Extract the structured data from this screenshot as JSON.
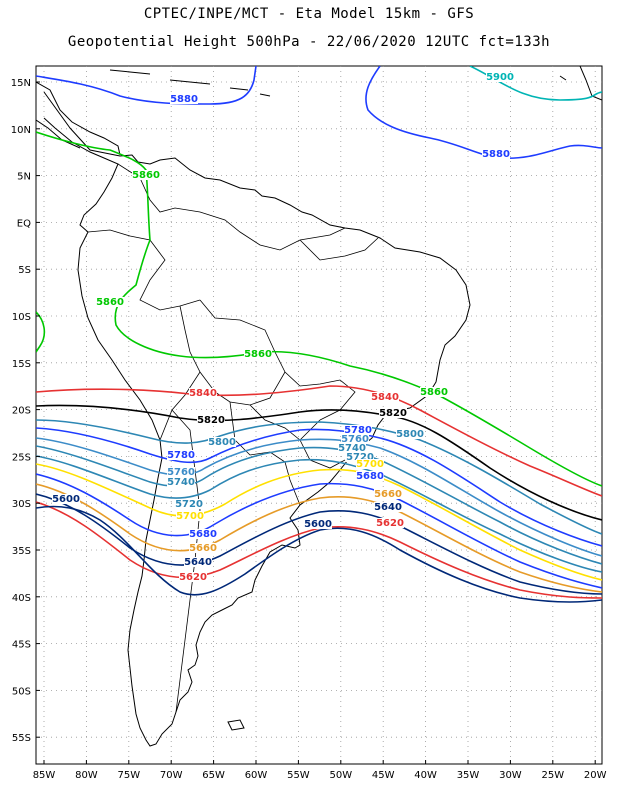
{
  "title_line1": "CPTEC/INPE/MCT -  Eta Model 15km - GFS",
  "title_line2": "Geopotential Height 500hPa - 22/06/2020 12UTC fct=133h",
  "lat_labels": [
    "15N",
    "10N",
    "5N",
    "EQ",
    "5S",
    "10S",
    "15S",
    "20S",
    "25S",
    "30S",
    "35S",
    "40S",
    "45S",
    "50S",
    "55S"
  ],
  "lon_labels": [
    "85W",
    "80W",
    "75W",
    "70W",
    "65W",
    "60W",
    "55W",
    "50W",
    "45W",
    "40W",
    "35W",
    "30W",
    "25W",
    "20W"
  ],
  "contours": [
    {
      "value": "5900",
      "color": "#00b4b4",
      "labels": 1
    },
    {
      "value": "5880",
      "color": "#1e3cff",
      "labels": 2
    },
    {
      "value": "5860",
      "color": "#00c800",
      "labels": 4
    },
    {
      "value": "5840",
      "color": "#e63232",
      "labels": 2
    },
    {
      "value": "5820",
      "color": "#000000",
      "labels": 2
    },
    {
      "value": "5800",
      "color": "#2d87b4",
      "labels": 2
    },
    {
      "value": "5780",
      "color": "#1e3cff",
      "labels": 2
    },
    {
      "value": "5760",
      "color": "#3c8cc8",
      "labels": 2
    },
    {
      "value": "5740",
      "color": "#2d87b4",
      "labels": 2
    },
    {
      "value": "5720",
      "color": "#2d87b4",
      "labels": 2
    },
    {
      "value": "5700",
      "color": "#ffe000",
      "labels": 2
    },
    {
      "value": "5680",
      "color": "#1e3cff",
      "labels": 2
    },
    {
      "value": "5660",
      "color": "#e69b28",
      "labels": 2
    },
    {
      "value": "5640",
      "color": "#002878",
      "labels": 2
    },
    {
      "value": "5620",
      "color": "#e63232",
      "labels": 2
    },
    {
      "value": "5600",
      "color": "#002878",
      "labels": 2
    }
  ]
}
